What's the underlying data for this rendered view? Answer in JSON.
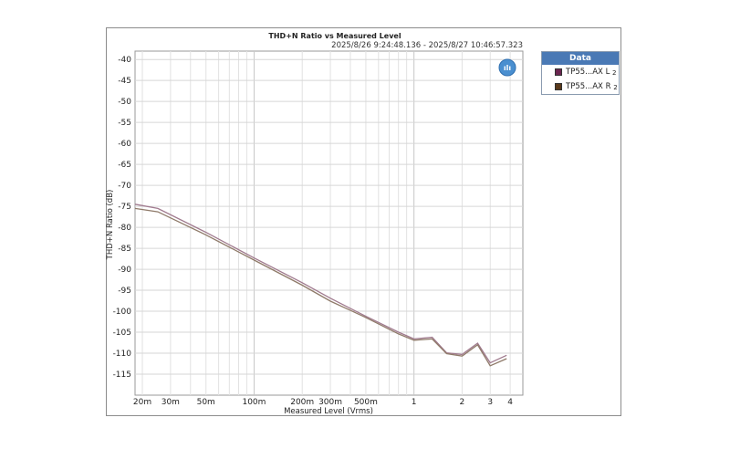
{
  "chart_data": {
    "type": "line",
    "title": "THD+N Ratio vs Measured Level",
    "subtitle": "2025/8/26 9:24:48.136 - 2025/8/27 10:46:57.323",
    "xlabel": "Measured Level (Vrms)",
    "ylabel": "THD+N Ratio (dB)",
    "xscale": "log",
    "xlim": [
      0.018,
      4.8
    ],
    "ylim": [
      -120,
      -38
    ],
    "grid": true,
    "legend_title": "Data",
    "legend_position": "right",
    "x_ticks": [
      {
        "value": 0.02,
        "label": "20m"
      },
      {
        "value": 0.03,
        "label": "30m"
      },
      {
        "value": 0.05,
        "label": "50m"
      },
      {
        "value": 0.1,
        "label": "100m"
      },
      {
        "value": 0.2,
        "label": "200m"
      },
      {
        "value": 0.3,
        "label": "300m"
      },
      {
        "value": 0.5,
        "label": "500m"
      },
      {
        "value": 1,
        "label": "1"
      },
      {
        "value": 2,
        "label": "2"
      },
      {
        "value": 3,
        "label": "3"
      },
      {
        "value": 4,
        "label": "4"
      }
    ],
    "y_ticks": [
      -40,
      -45,
      -50,
      -55,
      -60,
      -65,
      -70,
      -75,
      -80,
      -85,
      -90,
      -95,
      -100,
      -105,
      -110,
      -115
    ],
    "series": [
      {
        "name": "TP55...AX L",
        "name_sub": "2",
        "color": "#6b2650",
        "line_color": "#a07a8e",
        "points": [
          [
            0.018,
            -74.5
          ],
          [
            0.025,
            -75.5
          ],
          [
            0.05,
            -81.2
          ],
          [
            0.1,
            -87.3
          ],
          [
            0.2,
            -93.2
          ],
          [
            0.3,
            -96.9
          ],
          [
            0.5,
            -101.2
          ],
          [
            0.8,
            -105.0
          ],
          [
            1.0,
            -106.6
          ],
          [
            1.3,
            -106.2
          ],
          [
            1.6,
            -109.9
          ],
          [
            2.0,
            -110.3
          ],
          [
            2.5,
            -107.6
          ],
          [
            3.0,
            -112.3
          ],
          [
            3.8,
            -110.5
          ]
        ]
      },
      {
        "name": "TP55...AX R",
        "name_sub": "2",
        "color": "#5a3a1c",
        "line_color": "#8f7a69",
        "points": [
          [
            0.018,
            -75.5
          ],
          [
            0.025,
            -76.3
          ],
          [
            0.05,
            -81.8
          ],
          [
            0.1,
            -87.8
          ],
          [
            0.2,
            -93.8
          ],
          [
            0.3,
            -97.6
          ],
          [
            0.5,
            -101.5
          ],
          [
            0.8,
            -105.4
          ],
          [
            1.0,
            -106.9
          ],
          [
            1.3,
            -106.6
          ],
          [
            1.6,
            -110.1
          ],
          [
            2.0,
            -110.7
          ],
          [
            2.5,
            -108.0
          ],
          [
            3.0,
            -113.0
          ],
          [
            3.8,
            -111.3
          ]
        ]
      }
    ]
  },
  "ap_logo_text": "ılı"
}
